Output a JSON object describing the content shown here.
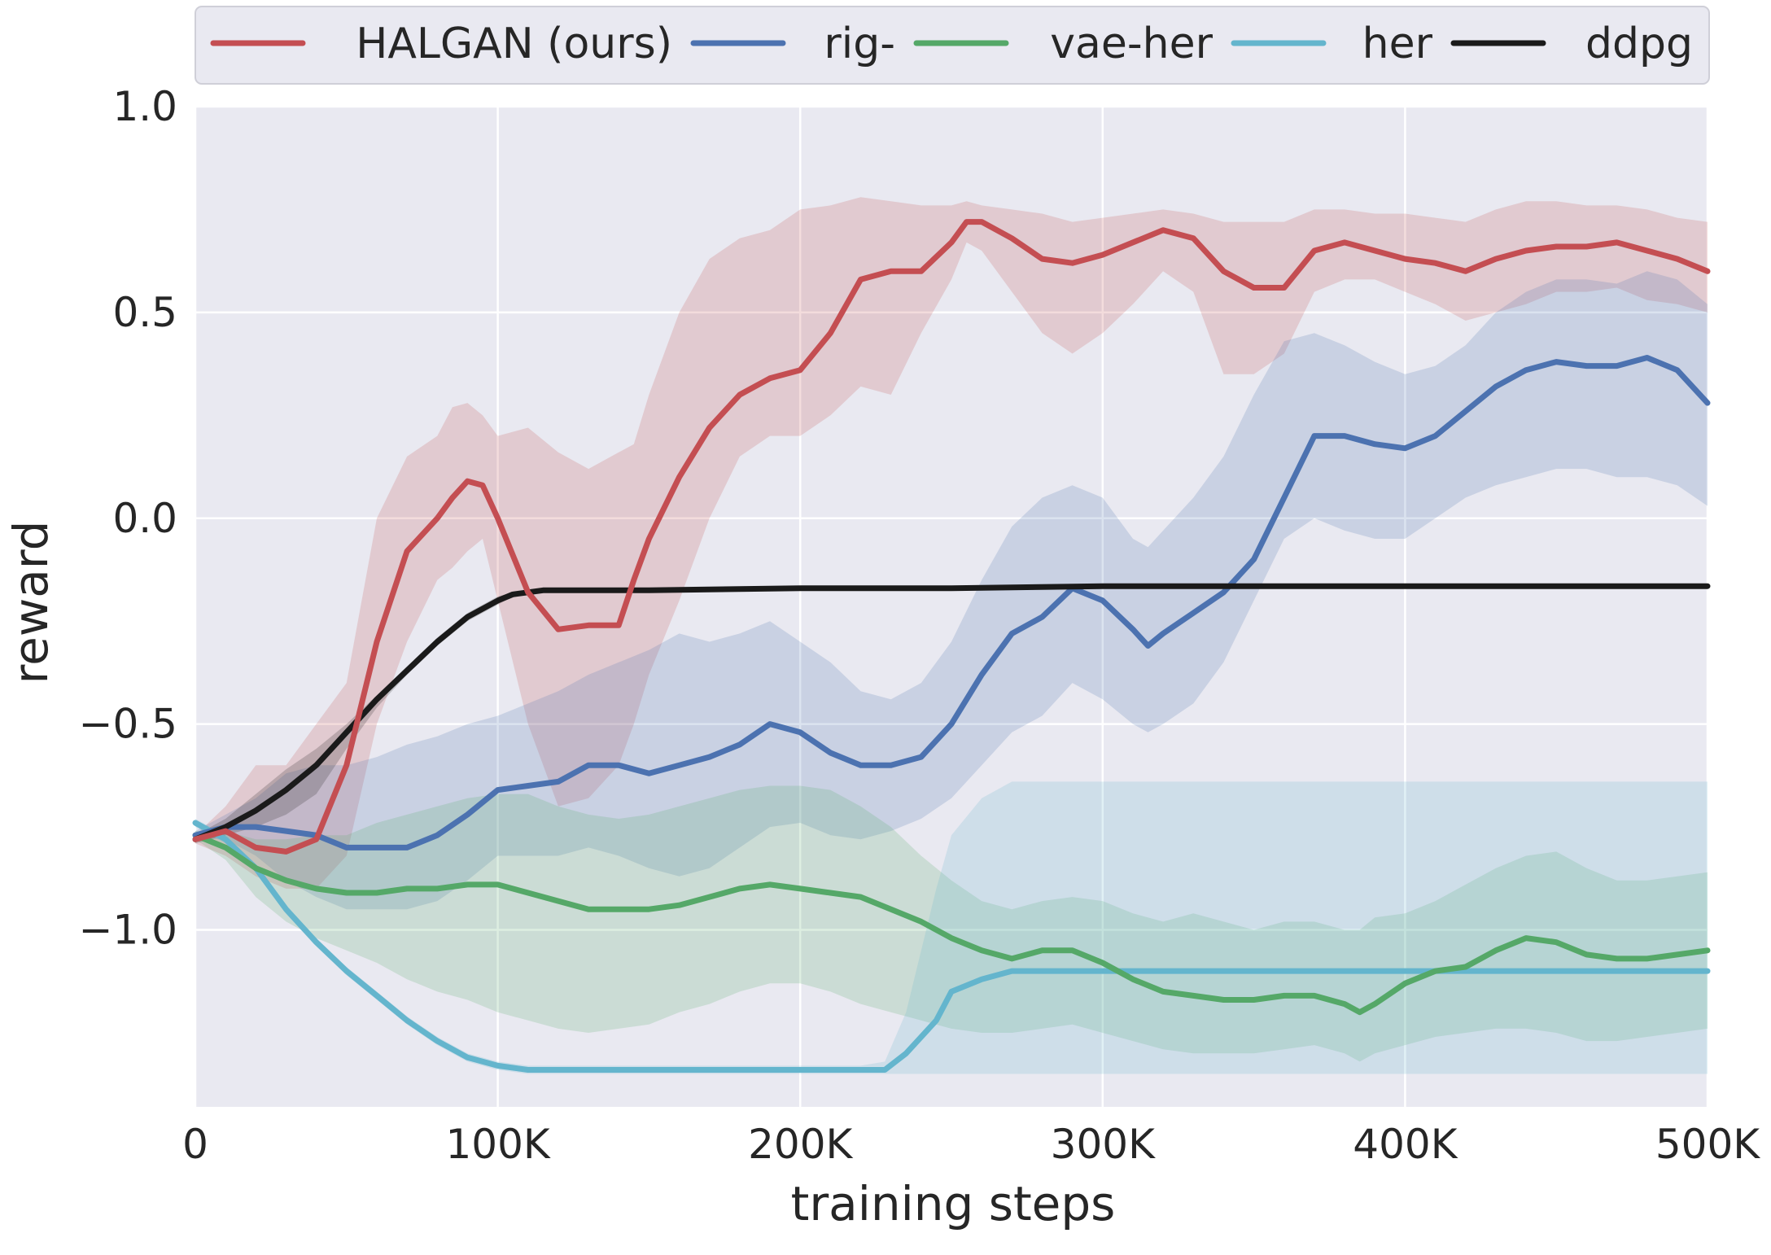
{
  "chart_data": {
    "type": "line",
    "title": "",
    "xlabel": "training steps",
    "ylabel": "reward",
    "xlim": [
      0,
      500000
    ],
    "ylim": [
      -1.43,
      1.0
    ],
    "xticks": [
      0,
      100000,
      200000,
      300000,
      400000,
      500000
    ],
    "xtick_labels": [
      "0",
      "100K",
      "200K",
      "300K",
      "400K",
      "500K"
    ],
    "yticks": [
      1.0,
      0.5,
      0.0,
      -0.5,
      -1.0
    ],
    "ytick_labels": [
      "1.0",
      "0.5",
      "0.0",
      "−0.5",
      "−1.0"
    ],
    "grid": true,
    "background": "#e9e9f1",
    "legend": {
      "position": "top",
      "order": [
        "HALGAN (ours)",
        "rig-",
        "vae-her",
        "her",
        "ddpg"
      ]
    },
    "series": [
      {
        "name": "HALGAN (ours)",
        "color": "#c44e52",
        "x": [
          0,
          10000,
          20000,
          30000,
          40000,
          50000,
          60000,
          70000,
          80000,
          85000,
          90000,
          95000,
          100000,
          110000,
          120000,
          130000,
          140000,
          145000,
          150000,
          160000,
          170000,
          180000,
          190000,
          200000,
          210000,
          220000,
          230000,
          240000,
          250000,
          255000,
          260000,
          270000,
          280000,
          290000,
          300000,
          310000,
          320000,
          330000,
          340000,
          350000,
          360000,
          370000,
          380000,
          390000,
          400000,
          410000,
          420000,
          430000,
          440000,
          450000,
          460000,
          470000,
          480000,
          490000,
          500000
        ],
        "y": [
          -0.78,
          -0.76,
          -0.8,
          -0.81,
          -0.78,
          -0.6,
          -0.3,
          -0.08,
          0.0,
          0.05,
          0.09,
          0.08,
          0.0,
          -0.18,
          -0.27,
          -0.26,
          -0.26,
          -0.15,
          -0.05,
          0.1,
          0.22,
          0.3,
          0.34,
          0.36,
          0.45,
          0.58,
          0.6,
          0.6,
          0.67,
          0.72,
          0.72,
          0.68,
          0.63,
          0.62,
          0.64,
          0.67,
          0.7,
          0.68,
          0.6,
          0.56,
          0.56,
          0.65,
          0.67,
          0.65,
          0.63,
          0.62,
          0.6,
          0.63,
          0.65,
          0.66,
          0.66,
          0.67,
          0.65,
          0.63,
          0.6
        ],
        "upper": [
          -0.77,
          -0.7,
          -0.6,
          -0.6,
          -0.5,
          -0.4,
          0.0,
          0.15,
          0.2,
          0.27,
          0.28,
          0.25,
          0.2,
          0.22,
          0.16,
          0.12,
          0.16,
          0.18,
          0.3,
          0.5,
          0.63,
          0.68,
          0.7,
          0.75,
          0.76,
          0.78,
          0.77,
          0.76,
          0.76,
          0.77,
          0.76,
          0.75,
          0.74,
          0.72,
          0.73,
          0.74,
          0.75,
          0.74,
          0.72,
          0.72,
          0.72,
          0.75,
          0.75,
          0.74,
          0.74,
          0.73,
          0.72,
          0.75,
          0.77,
          0.77,
          0.76,
          0.76,
          0.75,
          0.73,
          0.72
        ],
        "lower": [
          -0.79,
          -0.82,
          -0.87,
          -0.9,
          -0.9,
          -0.82,
          -0.5,
          -0.3,
          -0.15,
          -0.12,
          -0.08,
          -0.05,
          -0.2,
          -0.5,
          -0.7,
          -0.68,
          -0.6,
          -0.5,
          -0.38,
          -0.2,
          0.0,
          0.15,
          0.2,
          0.2,
          0.25,
          0.32,
          0.3,
          0.45,
          0.58,
          0.67,
          0.65,
          0.55,
          0.45,
          0.4,
          0.45,
          0.52,
          0.6,
          0.55,
          0.35,
          0.35,
          0.4,
          0.55,
          0.58,
          0.58,
          0.55,
          0.52,
          0.48,
          0.5,
          0.52,
          0.55,
          0.55,
          0.56,
          0.53,
          0.52,
          0.5
        ]
      },
      {
        "name": "rig-",
        "color": "#4c72b0",
        "x": [
          0,
          10000,
          20000,
          30000,
          40000,
          50000,
          60000,
          70000,
          80000,
          90000,
          100000,
          110000,
          120000,
          130000,
          140000,
          150000,
          160000,
          170000,
          180000,
          190000,
          200000,
          210000,
          220000,
          230000,
          240000,
          250000,
          260000,
          270000,
          280000,
          290000,
          300000,
          310000,
          315000,
          320000,
          330000,
          340000,
          350000,
          360000,
          370000,
          380000,
          390000,
          400000,
          410000,
          420000,
          430000,
          440000,
          450000,
          460000,
          470000,
          480000,
          490000,
          500000
        ],
        "y": [
          -0.77,
          -0.75,
          -0.75,
          -0.76,
          -0.77,
          -0.8,
          -0.8,
          -0.8,
          -0.77,
          -0.72,
          -0.66,
          -0.65,
          -0.64,
          -0.6,
          -0.6,
          -0.62,
          -0.6,
          -0.58,
          -0.55,
          -0.5,
          -0.52,
          -0.57,
          -0.6,
          -0.6,
          -0.58,
          -0.5,
          -0.38,
          -0.28,
          -0.24,
          -0.17,
          -0.2,
          -0.27,
          -0.31,
          -0.28,
          -0.23,
          -0.18,
          -0.1,
          0.05,
          0.2,
          0.2,
          0.18,
          0.17,
          0.2,
          0.26,
          0.32,
          0.36,
          0.38,
          0.37,
          0.37,
          0.39,
          0.36,
          0.28
        ],
        "upper": [
          -0.76,
          -0.72,
          -0.68,
          -0.62,
          -0.6,
          -0.6,
          -0.58,
          -0.55,
          -0.53,
          -0.5,
          -0.48,
          -0.45,
          -0.42,
          -0.38,
          -0.35,
          -0.32,
          -0.28,
          -0.3,
          -0.28,
          -0.25,
          -0.3,
          -0.35,
          -0.42,
          -0.44,
          -0.4,
          -0.3,
          -0.15,
          -0.02,
          0.05,
          0.08,
          0.05,
          -0.05,
          -0.07,
          -0.03,
          0.05,
          0.15,
          0.3,
          0.43,
          0.45,
          0.42,
          0.38,
          0.35,
          0.37,
          0.42,
          0.5,
          0.55,
          0.58,
          0.58,
          0.57,
          0.6,
          0.58,
          0.52
        ],
        "lower": [
          -0.78,
          -0.78,
          -0.82,
          -0.88,
          -0.92,
          -0.95,
          -0.95,
          -0.95,
          -0.93,
          -0.88,
          -0.82,
          -0.82,
          -0.82,
          -0.8,
          -0.82,
          -0.85,
          -0.87,
          -0.85,
          -0.8,
          -0.75,
          -0.74,
          -0.77,
          -0.78,
          -0.76,
          -0.73,
          -0.68,
          -0.6,
          -0.52,
          -0.48,
          -0.4,
          -0.44,
          -0.5,
          -0.52,
          -0.5,
          -0.45,
          -0.35,
          -0.2,
          -0.05,
          0.0,
          -0.03,
          -0.05,
          -0.05,
          0.0,
          0.05,
          0.08,
          0.1,
          0.12,
          0.12,
          0.1,
          0.1,
          0.08,
          0.03
        ]
      },
      {
        "name": "vae-her",
        "color": "#55a868",
        "x": [
          0,
          10000,
          20000,
          30000,
          40000,
          50000,
          60000,
          70000,
          80000,
          90000,
          100000,
          110000,
          120000,
          130000,
          140000,
          150000,
          160000,
          170000,
          180000,
          190000,
          200000,
          210000,
          220000,
          230000,
          240000,
          250000,
          260000,
          270000,
          280000,
          290000,
          300000,
          310000,
          320000,
          330000,
          340000,
          350000,
          360000,
          370000,
          380000,
          385000,
          390000,
          400000,
          410000,
          420000,
          430000,
          440000,
          450000,
          460000,
          470000,
          480000,
          490000,
          500000
        ],
        "y": [
          -0.77,
          -0.8,
          -0.85,
          -0.88,
          -0.9,
          -0.91,
          -0.91,
          -0.9,
          -0.9,
          -0.89,
          -0.89,
          -0.91,
          -0.93,
          -0.95,
          -0.95,
          -0.95,
          -0.94,
          -0.92,
          -0.9,
          -0.89,
          -0.9,
          -0.91,
          -0.92,
          -0.95,
          -0.98,
          -1.02,
          -1.05,
          -1.07,
          -1.05,
          -1.05,
          -1.08,
          -1.12,
          -1.15,
          -1.16,
          -1.17,
          -1.17,
          -1.16,
          -1.16,
          -1.18,
          -1.2,
          -1.18,
          -1.13,
          -1.1,
          -1.09,
          -1.05,
          -1.02,
          -1.03,
          -1.06,
          -1.07,
          -1.07,
          -1.06,
          -1.05
        ],
        "upper": [
          -0.76,
          -0.76,
          -0.78,
          -0.78,
          -0.77,
          -0.77,
          -0.74,
          -0.72,
          -0.7,
          -0.68,
          -0.67,
          -0.67,
          -0.7,
          -0.72,
          -0.73,
          -0.72,
          -0.7,
          -0.68,
          -0.66,
          -0.65,
          -0.65,
          -0.66,
          -0.7,
          -0.75,
          -0.82,
          -0.88,
          -0.93,
          -0.95,
          -0.93,
          -0.92,
          -0.93,
          -0.96,
          -0.98,
          -0.96,
          -0.98,
          -1.0,
          -0.98,
          -0.98,
          -1.0,
          -1.0,
          -0.97,
          -0.96,
          -0.93,
          -0.89,
          -0.85,
          -0.82,
          -0.81,
          -0.85,
          -0.88,
          -0.88,
          -0.87,
          -0.86
        ],
        "lower": [
          -0.78,
          -0.83,
          -0.92,
          -0.98,
          -1.02,
          -1.05,
          -1.08,
          -1.12,
          -1.15,
          -1.17,
          -1.2,
          -1.22,
          -1.24,
          -1.25,
          -1.24,
          -1.23,
          -1.2,
          -1.18,
          -1.15,
          -1.13,
          -1.13,
          -1.15,
          -1.18,
          -1.2,
          -1.22,
          -1.24,
          -1.25,
          -1.25,
          -1.24,
          -1.23,
          -1.25,
          -1.27,
          -1.29,
          -1.3,
          -1.3,
          -1.3,
          -1.29,
          -1.28,
          -1.3,
          -1.32,
          -1.3,
          -1.28,
          -1.26,
          -1.25,
          -1.24,
          -1.24,
          -1.25,
          -1.27,
          -1.27,
          -1.26,
          -1.25,
          -1.24
        ]
      },
      {
        "name": "her",
        "color": "#64b5cd",
        "x": [
          0,
          10000,
          20000,
          30000,
          40000,
          50000,
          60000,
          70000,
          80000,
          90000,
          100000,
          110000,
          120000,
          140000,
          160000,
          180000,
          200000,
          220000,
          228000,
          235000,
          245000,
          250000,
          260000,
          270000,
          290000,
          320000,
          350000,
          400000,
          450000,
          500000
        ],
        "y": [
          -0.74,
          -0.78,
          -0.85,
          -0.95,
          -1.03,
          -1.1,
          -1.16,
          -1.22,
          -1.27,
          -1.31,
          -1.33,
          -1.34,
          -1.34,
          -1.34,
          -1.34,
          -1.34,
          -1.34,
          -1.34,
          -1.34,
          -1.3,
          -1.22,
          -1.15,
          -1.12,
          -1.1,
          -1.1,
          -1.1,
          -1.1,
          -1.1,
          -1.1,
          -1.1
        ],
        "upper": [
          -0.73,
          -0.77,
          -0.84,
          -0.94,
          -1.02,
          -1.09,
          -1.15,
          -1.21,
          -1.26,
          -1.3,
          -1.32,
          -1.33,
          -1.33,
          -1.33,
          -1.33,
          -1.33,
          -1.33,
          -1.33,
          -1.32,
          -1.2,
          -0.9,
          -0.77,
          -0.68,
          -0.64,
          -0.64,
          -0.64,
          -0.64,
          -0.64,
          -0.64,
          -0.64
        ],
        "lower": [
          -0.75,
          -0.79,
          -0.86,
          -0.96,
          -1.04,
          -1.11,
          -1.17,
          -1.23,
          -1.28,
          -1.32,
          -1.34,
          -1.35,
          -1.35,
          -1.35,
          -1.35,
          -1.35,
          -1.35,
          -1.35,
          -1.35,
          -1.35,
          -1.35,
          -1.35,
          -1.35,
          -1.35,
          -1.35,
          -1.35,
          -1.35,
          -1.35,
          -1.35,
          -1.35
        ]
      },
      {
        "name": "ddpg",
        "color": "#1a1a1a",
        "x": [
          0,
          10000,
          20000,
          30000,
          40000,
          50000,
          60000,
          70000,
          80000,
          90000,
          100000,
          105000,
          110000,
          115000,
          130000,
          150000,
          200000,
          250000,
          300000,
          350000,
          400000,
          450000,
          500000
        ],
        "y": [
          -0.78,
          -0.75,
          -0.71,
          -0.66,
          -0.6,
          -0.52,
          -0.44,
          -0.37,
          -0.3,
          -0.24,
          -0.2,
          -0.185,
          -0.18,
          -0.175,
          -0.175,
          -0.175,
          -0.17,
          -0.17,
          -0.165,
          -0.165,
          -0.165,
          -0.165,
          -0.165
        ],
        "upper": [
          -0.77,
          -0.73,
          -0.67,
          -0.61,
          -0.56,
          -0.5,
          -0.43,
          -0.36,
          -0.29,
          -0.23,
          -0.19,
          -0.18,
          -0.175,
          -0.17,
          -0.17,
          -0.17,
          -0.165,
          -0.165,
          -0.16,
          -0.16,
          -0.16,
          -0.16,
          -0.16
        ],
        "lower": [
          -0.79,
          -0.77,
          -0.75,
          -0.72,
          -0.67,
          -0.56,
          -0.46,
          -0.38,
          -0.31,
          -0.25,
          -0.21,
          -0.19,
          -0.185,
          -0.18,
          -0.18,
          -0.18,
          -0.175,
          -0.175,
          -0.17,
          -0.17,
          -0.17,
          -0.17,
          -0.17
        ]
      }
    ]
  }
}
